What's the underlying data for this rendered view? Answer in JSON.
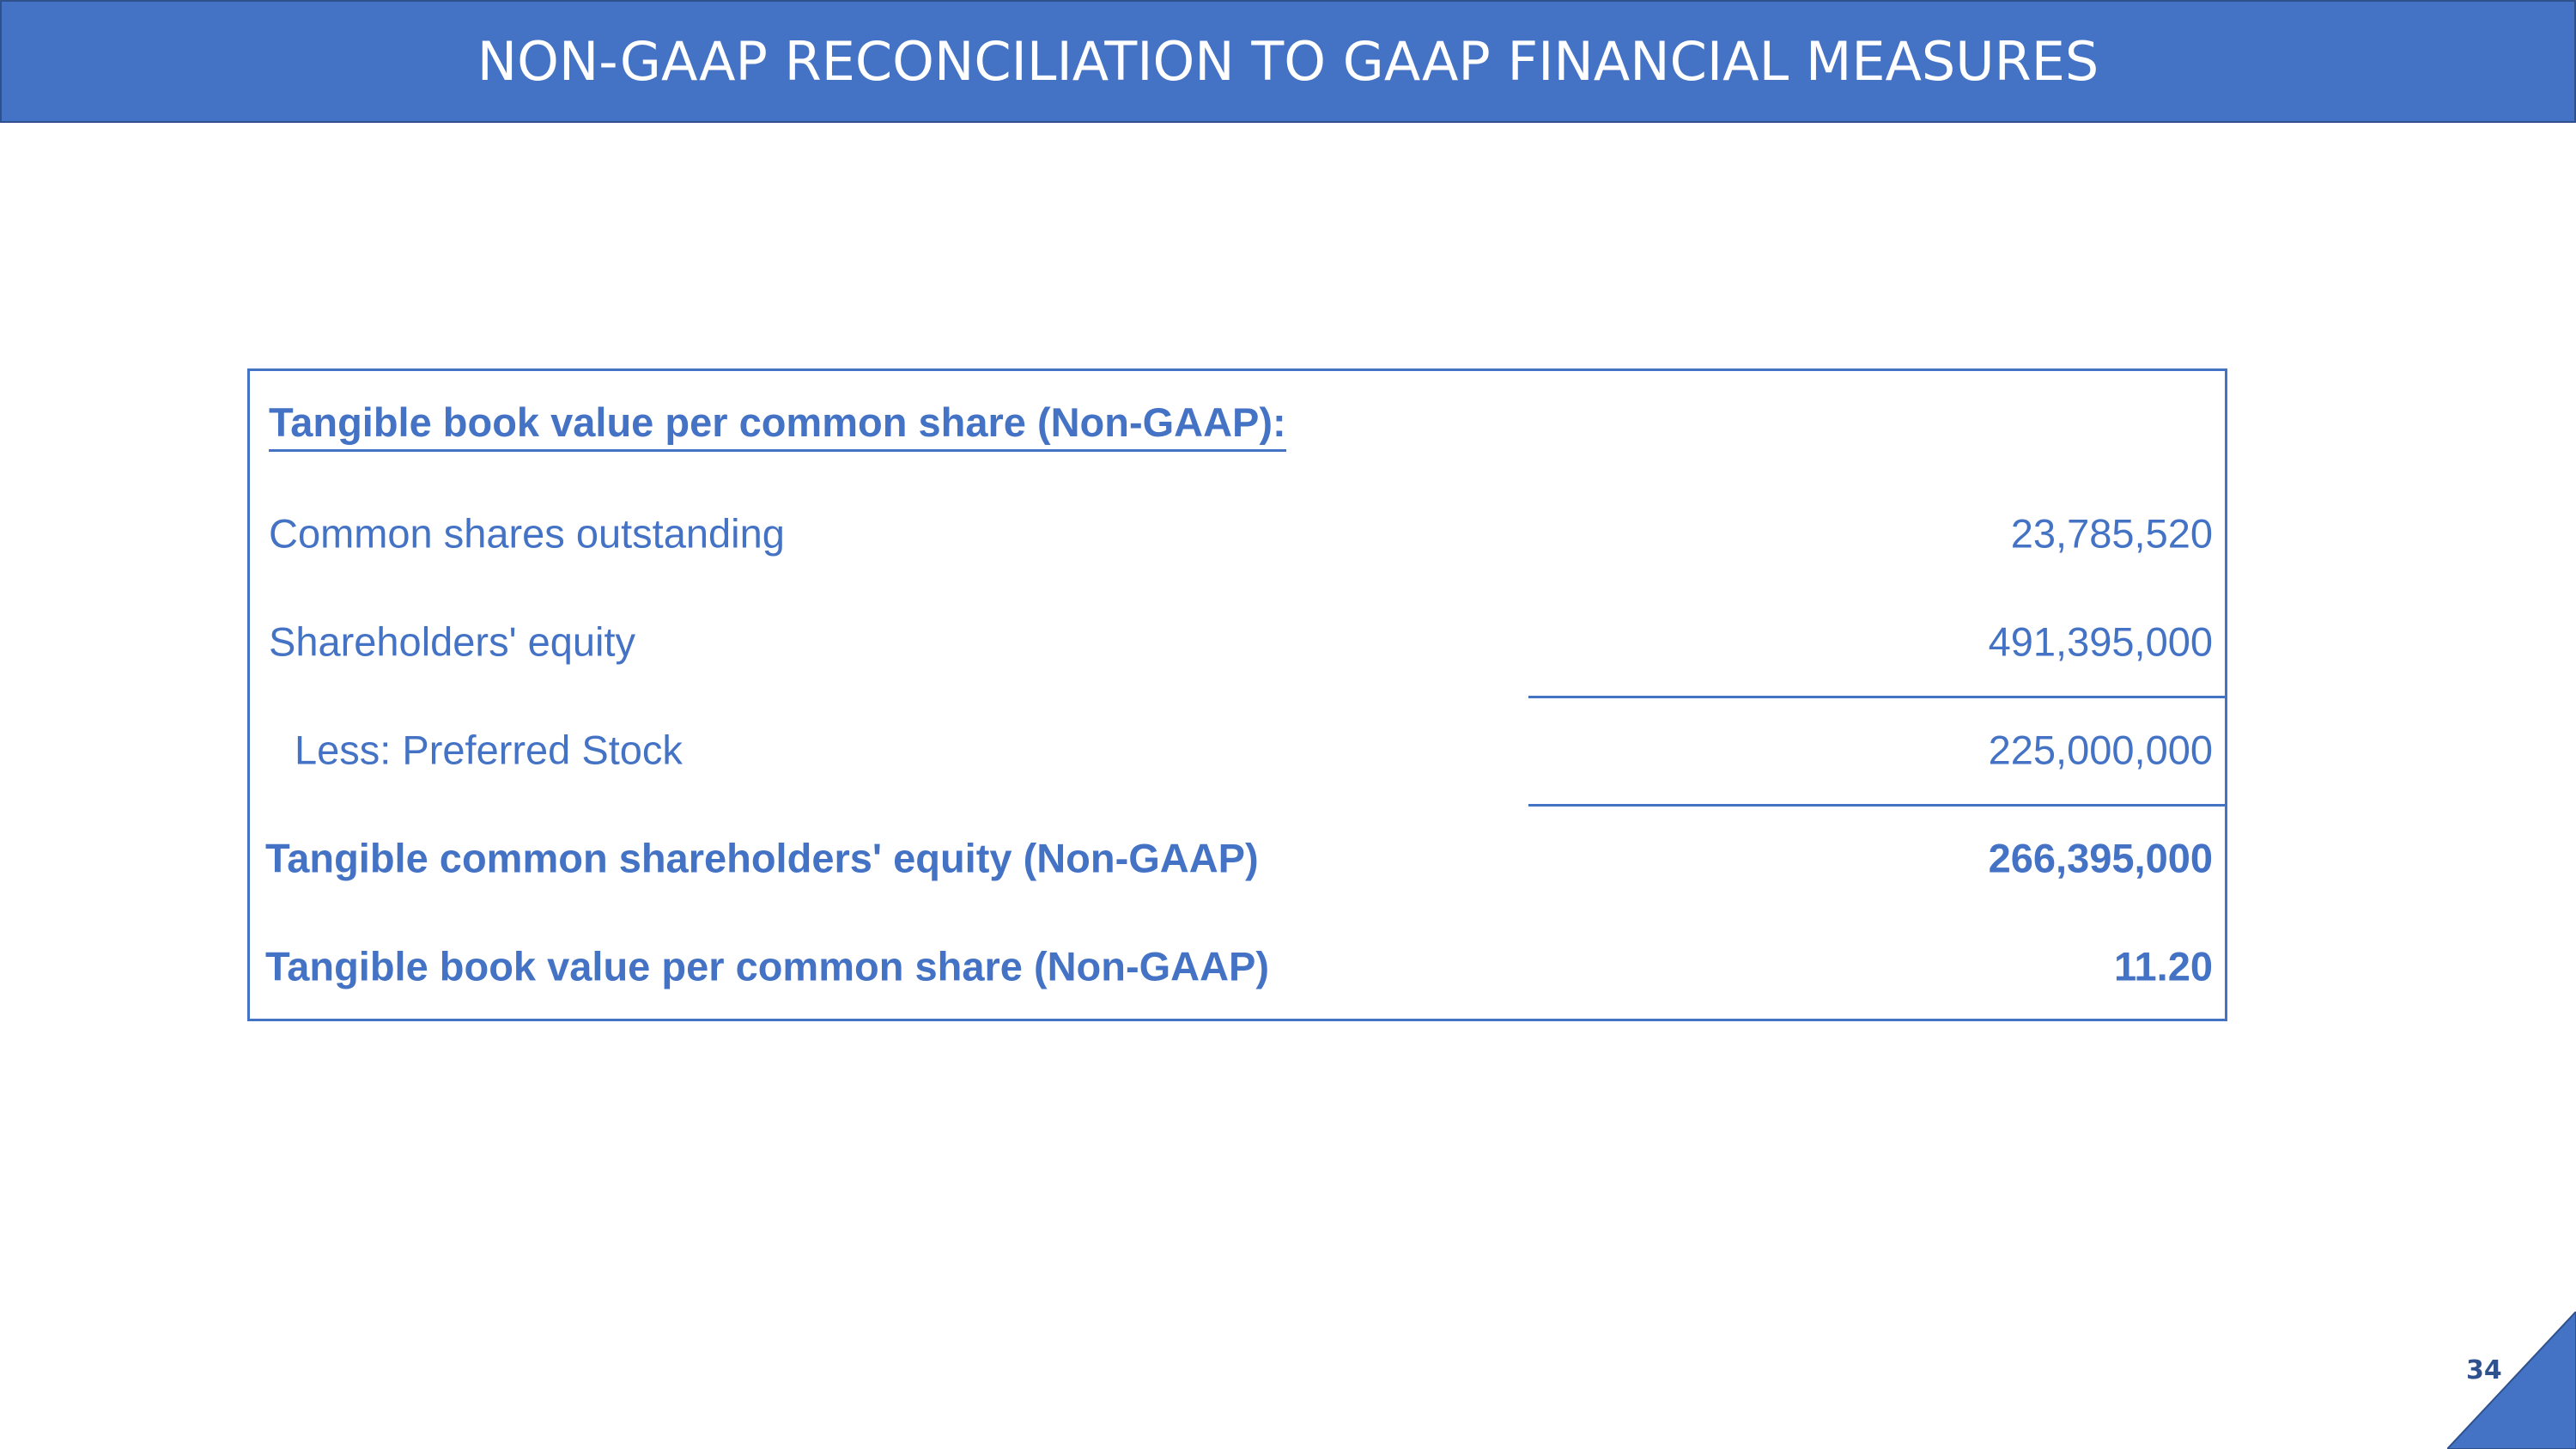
{
  "header": {
    "title": "NON-GAAP RECONCILIATION TO GAAP FINANCIAL MEASURES"
  },
  "table": {
    "heading": "Tangible book value per common share (Non-GAAP):",
    "rows": [
      {
        "label": "Common shares outstanding",
        "value": "23,785,520"
      },
      {
        "label": "Shareholders' equity",
        "value": "491,395,000"
      },
      {
        "label": "Less: Preferred Stock",
        "value": "225,000,000"
      },
      {
        "label": "Tangible common shareholders' equity (Non-GAAP)",
        "value": "266,395,000"
      },
      {
        "label": "Tangible book value per common share (Non-GAAP)",
        "value": "11.20"
      }
    ]
  },
  "footer": {
    "page_number": "34"
  },
  "colors": {
    "accent": "#4472c4",
    "accent_dark": "#2f528f",
    "background": "#ffffff"
  }
}
